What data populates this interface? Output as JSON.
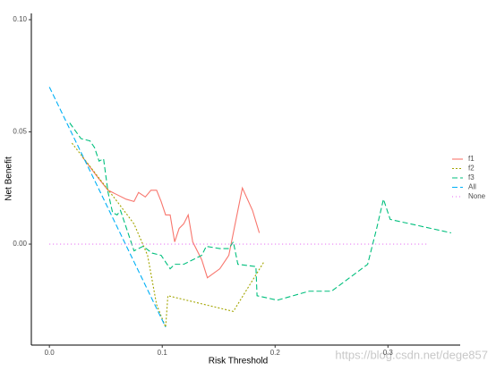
{
  "chart_data": {
    "type": "line",
    "xlabel": "Risk Threshold",
    "ylabel": "Net Benefit",
    "xlim": [
      -0.016,
      0.364
    ],
    "ylim": [
      -0.045,
      0.1028
    ],
    "xticks": [
      {
        "value": 0,
        "label": "0.0"
      },
      0.1,
      0.2,
      0.3
    ],
    "yticks": [
      {
        "value": 0,
        "label": "0.00"
      },
      0.05,
      {
        "value": 0.1,
        "label": "0.10"
      }
    ],
    "grid": false,
    "legend": "right",
    "series": [
      {
        "name": "f1",
        "color": "#F8766D",
        "dash": "none",
        "x": [
          0.029,
          0.044,
          0.052,
          0.06,
          0.068,
          0.075,
          0.079,
          0.085,
          0.09,
          0.095,
          0.099,
          0.103,
          0.107,
          0.111,
          0.115,
          0.119,
          0.123,
          0.127,
          0.135,
          0.14,
          0.151,
          0.159,
          0.171,
          0.18,
          0.186
        ],
        "values": [
          0.039,
          0.029,
          0.024,
          0.022,
          0.02,
          0.019,
          0.023,
          0.021,
          0.024,
          0.024,
          0.019,
          0.013,
          0.013,
          0.001,
          0.007,
          0.009,
          0.013,
          0.001,
          -0.007,
          -0.015,
          -0.011,
          -0.005,
          0.025,
          0.015,
          0.005
        ]
      },
      {
        "name": "f2",
        "color": "#A3A500",
        "dash": "2,2",
        "x": [
          0.02,
          0.04,
          0.06,
          0.075,
          0.087,
          0.095,
          0.103,
          0.105,
          0.163,
          0.19
        ],
        "values": [
          0.045,
          0.032,
          0.019,
          0.009,
          -0.005,
          -0.027,
          -0.037,
          -0.023,
          -0.03,
          -0.008
        ]
      },
      {
        "name": "f3",
        "color": "#00BF7D",
        "dash": "6,3",
        "x": [
          0.018,
          0.028,
          0.036,
          0.04,
          0.044,
          0.048,
          0.052,
          0.056,
          0.06,
          0.063,
          0.067,
          0.075,
          0.083,
          0.091,
          0.099,
          0.107,
          0.111,
          0.119,
          0.127,
          0.135,
          0.139,
          0.151,
          0.159,
          0.163,
          0.167,
          0.183,
          0.184,
          0.202,
          0.23,
          0.25,
          0.266,
          0.282,
          0.29,
          0.296,
          0.302,
          0.356
        ],
        "values": [
          0.054,
          0.047,
          0.046,
          0.043,
          0.037,
          0.038,
          0.023,
          0.014,
          0.013,
          0.015,
          0.009,
          -0.003,
          -0.001,
          -0.004,
          -0.005,
          -0.011,
          -0.009,
          -0.009,
          -0.007,
          -0.005,
          -0.001,
          -0.002,
          -0.002,
          0.001,
          -0.009,
          -0.01,
          -0.023,
          -0.025,
          -0.021,
          -0.021,
          -0.015,
          -0.009,
          0.007,
          0.02,
          0.011,
          0.005
        ]
      },
      {
        "name": "All",
        "color": "#00B0F6",
        "dash": "6,3",
        "x": [
          0,
          0.103
        ],
        "values": [
          0.07,
          -0.037
        ]
      },
      {
        "name": "None",
        "color": "#E76BF3",
        "dash": "1,3",
        "x": [
          0,
          0.336
        ],
        "values": [
          0,
          0
        ]
      }
    ],
    "watermark": "https://blog.csdn.net/dege857"
  }
}
